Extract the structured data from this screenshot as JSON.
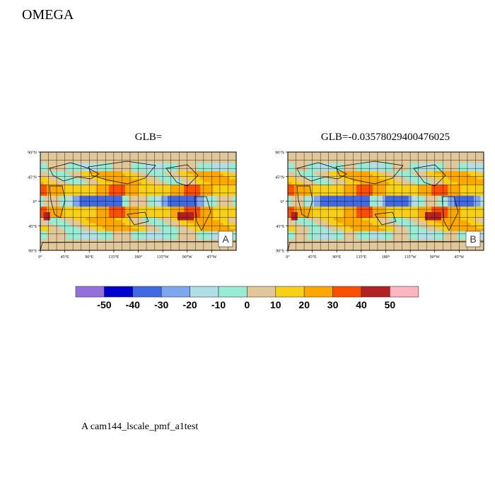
{
  "title": "OMEGA",
  "footnote": "A  cam144_lscale_pmf_a1test",
  "chart_data": [
    {
      "type": "heatmap",
      "panel": "A",
      "title": "GLB=",
      "lat_ticks": [
        "90°N",
        "45°N",
        "0°",
        "45°S",
        "90°S"
      ],
      "lon_ticks": [
        "0°",
        "45°E",
        "90°E",
        "135°E",
        "180°",
        "135°W",
        "90°W",
        "45°W"
      ],
      "lat_range": [
        -90,
        90
      ],
      "lon_range": [
        0,
        360
      ],
      "grid": true,
      "label_box": "A",
      "label_box_position": "bottom-right"
    },
    {
      "type": "heatmap",
      "panel": "B",
      "title": "GLB=-0.03578029400476025",
      "lat_ticks": [
        "90°N",
        "45°N",
        "0°",
        "45°S",
        "90°S"
      ],
      "lon_ticks": [
        "0°",
        "45°E",
        "90°E",
        "135°E",
        "180°",
        "135°W",
        "90°W",
        "45°W"
      ],
      "lat_range": [
        -90,
        90
      ],
      "lon_range": [
        0,
        360
      ],
      "grid": true,
      "label_box": "B",
      "label_box_position": "bottom-right"
    }
  ],
  "colorbar": {
    "labels": [
      "-50",
      "-40",
      "-30",
      "-20",
      "-10",
      "0",
      "10",
      "20",
      "30",
      "40",
      "50"
    ],
    "colors": [
      "#9370db",
      "#0000cd",
      "#4169e1",
      "#7fa7ef",
      "#b0e0e6",
      "#98ecd4",
      "#e1c799",
      "#f7d017",
      "#fda800",
      "#fc4f00",
      "#b22222",
      "#ffb6c1"
    ]
  }
}
